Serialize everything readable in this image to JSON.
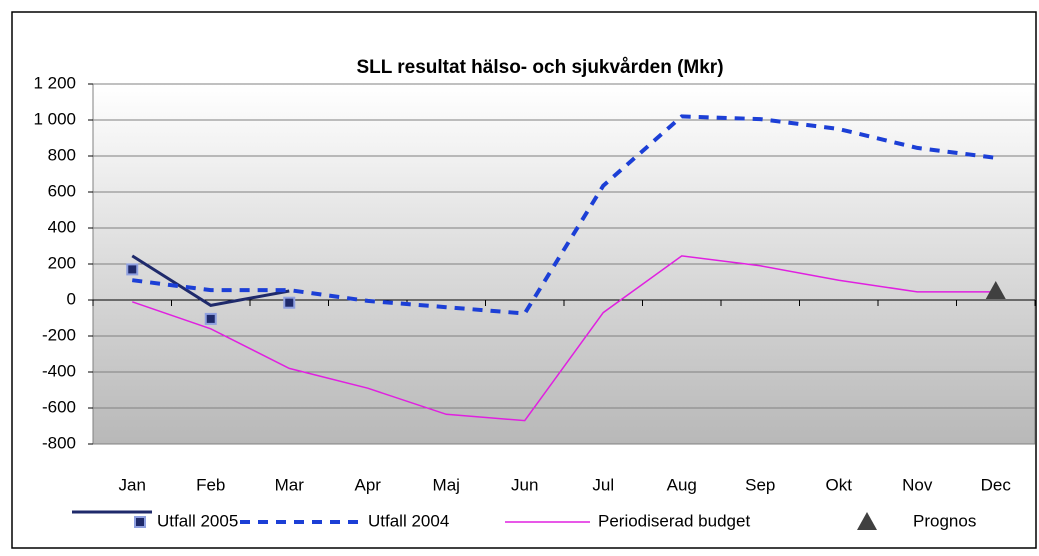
{
  "chart_data": {
    "type": "line",
    "title": "SLL resultat hälso- och sjukvården (Mkr)",
    "categories": [
      "Jan",
      "Feb",
      "Mar",
      "Apr",
      "Maj",
      "Jun",
      "Jul",
      "Aug",
      "Sep",
      "Okt",
      "Nov",
      "Dec"
    ],
    "series": [
      {
        "name": "Utfall 2005",
        "color": "#1f2a6b",
        "style": "marker",
        "values": [
          170,
          -105,
          -15,
          null,
          null,
          null,
          null,
          null,
          null,
          null,
          null,
          null
        ]
      },
      {
        "color": "#1f2a6b",
        "style": "solid",
        "values": [
          245,
          -30,
          50,
          null,
          null,
          null,
          null,
          null,
          null,
          null,
          null,
          null
        ]
      },
      {
        "name": "Utfall 2004",
        "color": "#1c3fd6",
        "style": "dashed",
        "values": [
          110,
          55,
          55,
          -5,
          -40,
          -75,
          635,
          1020,
          1005,
          950,
          845,
          790
        ]
      },
      {
        "name": "Periodiserad budget",
        "color": "#e020e0",
        "style": "thin",
        "values": [
          -10,
          -160,
          -380,
          -490,
          -635,
          -670,
          -70,
          245,
          190,
          110,
          45,
          45
        ]
      },
      {
        "name": "Prognos",
        "color": "#404040",
        "style": "triangle",
        "values": [
          null,
          null,
          null,
          null,
          null,
          null,
          null,
          null,
          null,
          null,
          null,
          50
        ]
      }
    ],
    "ylim": [
      -800,
      1200
    ],
    "yticks": [
      -800,
      -600,
      -400,
      -200,
      0,
      200,
      400,
      600,
      800,
      {
        "value": 1000,
        "label": "1 000"
      },
      {
        "value": 1200,
        "label": "1 200"
      }
    ],
    "grid": true
  }
}
